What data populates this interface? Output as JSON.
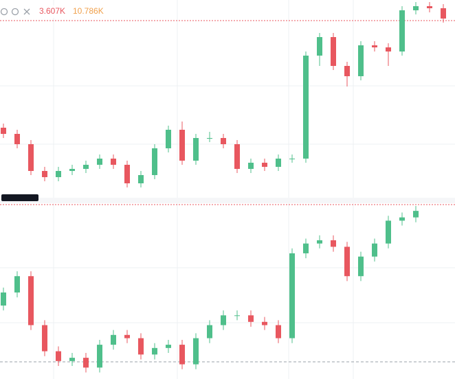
{
  "header": {
    "volume_labels": [
      "3.607K",
      "10.786K"
    ]
  },
  "chart_data": [
    {
      "type": "candlestick",
      "up_color": "#4fbf8b",
      "down_color": "#e8575f",
      "ylim": [
        0,
        100
      ],
      "open": [
        38,
        35,
        30,
        17,
        14,
        17,
        18,
        20,
        23,
        20,
        11,
        15,
        28,
        37,
        22,
        33,
        33,
        30,
        18,
        21,
        19,
        23,
        23,
        73,
        82,
        68,
        63,
        78,
        77,
        75,
        95,
        97,
        96
      ],
      "high": [
        40,
        37,
        32,
        19,
        19,
        20,
        22,
        25,
        25,
        22,
        17,
        30,
        39,
        41,
        35,
        36,
        35,
        32,
        23,
        23,
        25,
        25,
        75,
        84,
        84,
        70,
        80,
        80,
        79,
        97,
        99,
        99,
        98
      ],
      "low": [
        33,
        28,
        15,
        12,
        12,
        15,
        16,
        18,
        18,
        9,
        9,
        13,
        26,
        20,
        20,
        31,
        28,
        16,
        16,
        17,
        17,
        21,
        21,
        68,
        66,
        58,
        61,
        75,
        68,
        73,
        93,
        94,
        89
      ],
      "close": [
        35,
        30,
        17,
        14,
        17,
        18,
        20,
        23,
        20,
        11,
        15,
        28,
        37,
        22,
        33,
        33,
        30,
        18,
        21,
        19,
        23,
        23,
        73,
        82,
        68,
        63,
        78,
        77,
        75,
        95,
        97,
        96,
        91
      ]
    },
    {
      "type": "candlestick",
      "up_color": "#4fbf8b",
      "down_color": "#e8575f",
      "ylim": [
        0,
        106
      ],
      "open": [
        45,
        53,
        63,
        33,
        17,
        11,
        13,
        7,
        21,
        27,
        25,
        15,
        19,
        21,
        9,
        25,
        33,
        39,
        39,
        35,
        33,
        25,
        77,
        83,
        85,
        81,
        63,
        75,
        83,
        97,
        99
      ],
      "high": [
        56,
        66,
        66,
        36,
        20,
        16,
        16,
        24,
        30,
        30,
        28,
        22,
        24,
        24,
        28,
        36,
        42,
        42,
        42,
        38,
        36,
        80,
        86,
        88,
        88,
        84,
        78,
        86,
        100,
        102,
        106
      ],
      "low": [
        42,
        50,
        30,
        14,
        8,
        8,
        4,
        4,
        18,
        22,
        12,
        12,
        16,
        6,
        6,
        22,
        30,
        36,
        32,
        30,
        22,
        22,
        74,
        80,
        78,
        60,
        60,
        72,
        80,
        94,
        96
      ],
      "close": [
        53,
        63,
        33,
        17,
        11,
        13,
        7,
        21,
        27,
        25,
        15,
        19,
        21,
        9,
        25,
        33,
        39,
        39,
        35,
        33,
        25,
        77,
        83,
        85,
        81,
        63,
        75,
        83,
        97,
        99,
        103
      ]
    }
  ]
}
